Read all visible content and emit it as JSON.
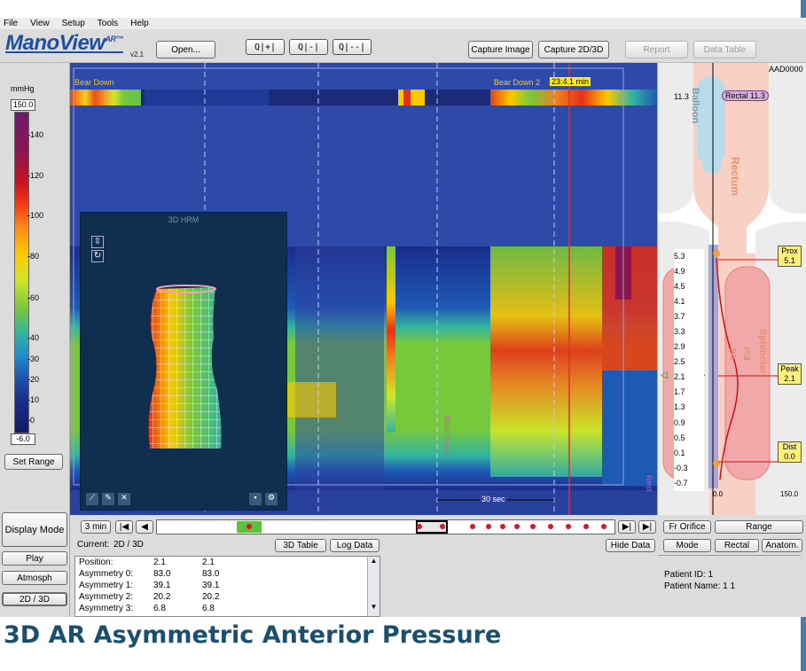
{
  "menu": [
    "File",
    "View",
    "Setup",
    "Tools",
    "Help"
  ],
  "logo": {
    "name": "ManoView",
    "mark": "AR™",
    "version": "v2.1"
  },
  "toolbar": {
    "open": "Open...",
    "zoom_in": "Q|+|",
    "zoom_fit": "Q|-|",
    "zoom_out": "Q|--|",
    "capture_image": "Capture Image",
    "capture_2d3d": "Capture 2D/3D",
    "report": "Report",
    "data_table": "Data Table"
  },
  "colorbar": {
    "unit": "mmHg",
    "max": "150.0",
    "min": "-6.0",
    "ticks": [
      "140",
      "120",
      "100",
      "80",
      "60",
      "40",
      "30",
      "20",
      "10",
      "0"
    ],
    "set_range": "Set Range"
  },
  "chart": {
    "event1": "Bear Down",
    "event2": "Bear Down 2",
    "event2_time": "23:4.1 min",
    "patient_code": "AAD0000",
    "scale_label": "30 sec",
    "side_label": "Rest",
    "rotated_label": "Bear Down"
  },
  "hrm": {
    "title": "3D HRM"
  },
  "anatomy": {
    "balloon": "Balloon",
    "rectum": "Rectum",
    "sphincter": "Sphincter",
    "int": "Int",
    "ext": "Ext",
    "top_value": "11.3",
    "rectal_tag": "Rectal 11.3",
    "positions": [
      "5.3",
      "4.9",
      "4.5",
      "4.1",
      "3.7",
      "3.3",
      "2.9",
      "2.5",
      "2.1",
      "1.7",
      "1.3",
      "0.9",
      "0.5",
      "0.1",
      "-0.3",
      "-0.7"
    ],
    "prox": {
      "label": "Prox",
      "value": "5.1"
    },
    "peak": {
      "label": "Peak",
      "value": "2.1"
    },
    "dist": {
      "label": "Dist",
      "value": "0.0"
    },
    "axis_min": "0.0",
    "axis_max": "150.0"
  },
  "left_buttons": {
    "display_mode": "Display Mode",
    "play": "Play",
    "atmosph": "Atmosph",
    "twod3d": "2D / 3D"
  },
  "timeline": {
    "duration": "3 min"
  },
  "current": {
    "label": "Current:",
    "value": "2D / 3D"
  },
  "buttons": {
    "table3d": "3D Table",
    "log_data": "Log Data",
    "hide_data": "Hide Data"
  },
  "data_rows": [
    [
      "Position:",
      "2.1",
      "2.1"
    ],
    [
      "Asymmetry 0:",
      "83.0",
      "83.0"
    ],
    [
      "Asymmetry 1:",
      "39.1",
      "39.1"
    ],
    [
      "Asymmetry 2:",
      "20.2",
      "20.2"
    ],
    [
      "Asymmetry 3:",
      "6.8",
      "6.8"
    ]
  ],
  "right_buttons": {
    "fr_orifice": "Fr Orifice",
    "range": "Range",
    "mode": "Mode",
    "rectal": "Rectal",
    "anatom": "Anatom."
  },
  "patient": {
    "id": "Patient ID: 1",
    "name": "Patient Name: 1 1"
  },
  "caption": "3D AR Asymmetric Anterior Pressure"
}
